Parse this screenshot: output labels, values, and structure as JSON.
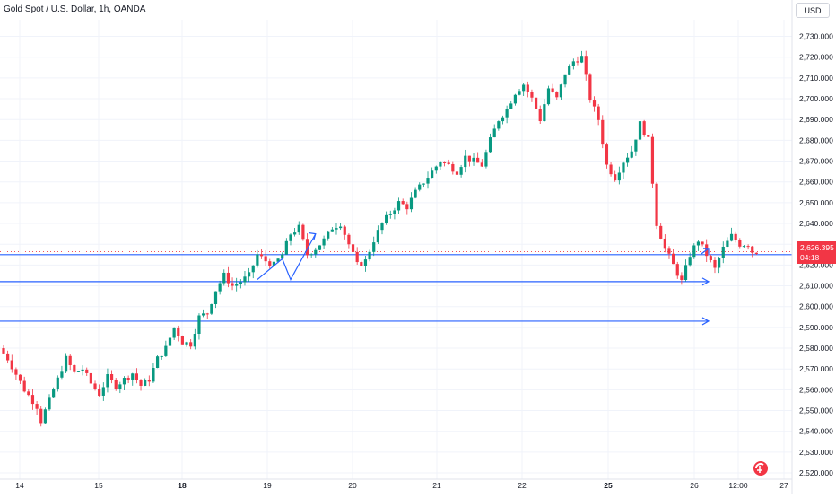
{
  "header": {
    "title": "Gold Spot / U.S. Dollar, 1h, OANDA",
    "currency": "USD"
  },
  "last_price": {
    "value": "2,626.395",
    "countdown": "04:18"
  },
  "colors": {
    "up": "#089981",
    "down": "#f23645",
    "line": "#2962ff",
    "grid": "#f0f3fa",
    "text": "#131722"
  },
  "chart_data": {
    "type": "candlestick",
    "title": "Gold Spot / U.S. Dollar, 1h, OANDA",
    "ylim": [
      2517,
      2738
    ],
    "y_ticks": [
      "2,520.000",
      "2,530.000",
      "2,540.000",
      "2,550.000",
      "2,560.000",
      "2,570.000",
      "2,580.000",
      "2,590.000",
      "2,600.000",
      "2,610.000",
      "2,620.000",
      "2,630.000",
      "2,640.000",
      "2,650.000",
      "2,660.000",
      "2,670.000",
      "2,680.000",
      "2,690.000",
      "2,700.000",
      "2,710.000",
      "2,720.000",
      "2,730.000"
    ],
    "x_ticks": [
      "14",
      "15",
      "18",
      "19",
      "20",
      "21",
      "22",
      "25",
      "26",
      "12:00",
      "27"
    ],
    "grid": true,
    "path": [
      [
        0,
        2580
      ],
      [
        2,
        2575
      ],
      [
        6,
        2560
      ],
      [
        9,
        2552
      ],
      [
        10,
        2545
      ],
      [
        12,
        2555
      ],
      [
        14,
        2565
      ],
      [
        16,
        2575
      ],
      [
        18,
        2568
      ],
      [
        20,
        2570
      ],
      [
        22,
        2563
      ],
      [
        24,
        2558
      ],
      [
        26,
        2566
      ],
      [
        28,
        2562
      ],
      [
        30,
        2565
      ],
      [
        32,
        2568
      ],
      [
        34,
        2562
      ],
      [
        36,
        2565
      ],
      [
        38,
        2575
      ],
      [
        40,
        2580
      ],
      [
        42,
        2590
      ],
      [
        44,
        2583
      ],
      [
        46,
        2582
      ],
      [
        48,
        2595
      ],
      [
        50,
        2597
      ],
      [
        52,
        2608
      ],
      [
        54,
        2615
      ],
      [
        56,
        2610
      ],
      [
        58,
        2612
      ],
      [
        60,
        2615
      ],
      [
        62,
        2625
      ],
      [
        64,
        2622
      ],
      [
        66,
        2620
      ],
      [
        68,
        2625
      ],
      [
        70,
        2635
      ],
      [
        72,
        2638
      ],
      [
        74,
        2625
      ],
      [
        76,
        2628
      ],
      [
        78,
        2632
      ],
      [
        80,
        2638
      ],
      [
        82,
        2640
      ],
      [
        84,
        2630
      ],
      [
        86,
        2620
      ],
      [
        88,
        2622
      ],
      [
        90,
        2632
      ],
      [
        92,
        2640
      ],
      [
        94,
        2645
      ],
      [
        96,
        2650
      ],
      [
        98,
        2648
      ],
      [
        100,
        2655
      ],
      [
        102,
        2660
      ],
      [
        104,
        2665
      ],
      [
        106,
        2670
      ],
      [
        108,
        2668
      ],
      [
        110,
        2665
      ],
      [
        112,
        2672
      ],
      [
        114,
        2670
      ],
      [
        116,
        2668
      ],
      [
        118,
        2680
      ],
      [
        120,
        2690
      ],
      [
        122,
        2695
      ],
      [
        124,
        2703
      ],
      [
        126,
        2707
      ],
      [
        128,
        2700
      ],
      [
        130,
        2690
      ],
      [
        132,
        2705
      ],
      [
        134,
        2700
      ],
      [
        136,
        2712
      ],
      [
        138,
        2718
      ],
      [
        140,
        2720
      ],
      [
        142,
        2700
      ],
      [
        144,
        2690
      ],
      [
        146,
        2668
      ],
      [
        148,
        2662
      ],
      [
        150,
        2670
      ],
      [
        152,
        2675
      ],
      [
        154,
        2688
      ],
      [
        156,
        2680
      ],
      [
        158,
        2640
      ],
      [
        160,
        2628
      ],
      [
        162,
        2620
      ],
      [
        164,
        2612
      ],
      [
        166,
        2625
      ],
      [
        168,
        2632
      ],
      [
        170,
        2625
      ],
      [
        172,
        2618
      ],
      [
        174,
        2628
      ],
      [
        176,
        2634
      ],
      [
        178,
        2630
      ],
      [
        180,
        2630
      ],
      [
        181,
        2626.4
      ]
    ],
    "horizontal_levels": [
      2625,
      2612,
      2593
    ],
    "level_arrows": [
      {
        "y": 2612,
        "x_start_label": "",
        "end_date": "26"
      },
      {
        "y": 2593,
        "x_start_label": "",
        "end_date": "26"
      }
    ],
    "pattern_zigzag": [
      [
        61,
        2613
      ],
      [
        67,
        2623
      ],
      [
        69,
        2613
      ],
      [
        75,
        2635
      ]
    ],
    "last_value": 2626.395
  }
}
